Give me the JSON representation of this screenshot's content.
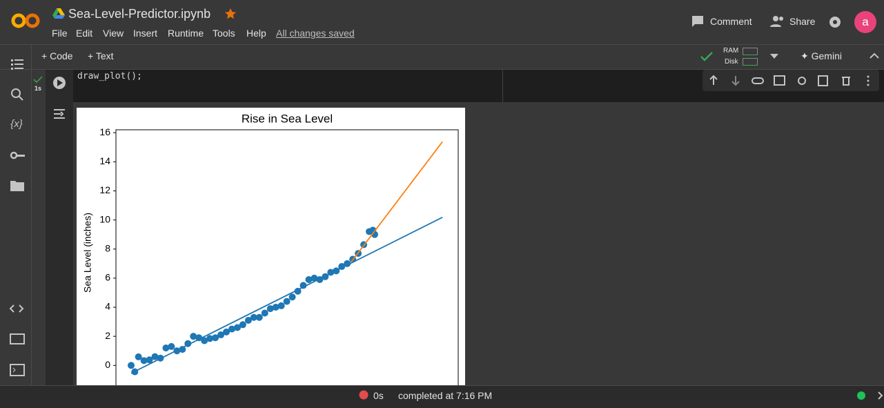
{
  "header": {
    "file_name": "Sea-Level-Predictor.ipynb",
    "menus": [
      "File",
      "Edit",
      "View",
      "Insert",
      "Runtime",
      "Tools",
      "Help"
    ],
    "save_status": "All changes saved",
    "comment": "Comment",
    "share": "Share",
    "avatar": "a"
  },
  "toolbar": {
    "add_code": "Code",
    "add_text": "Text",
    "ram": "RAM",
    "disk": "Disk",
    "gemini": "Gemini"
  },
  "cell": {
    "exec_time": "1s",
    "code": "draw_plot();"
  },
  "status": {
    "duration": "0s",
    "message": "completed at 7:16 PM"
  },
  "chart_data": {
    "type": "scatter",
    "title": "Rise in Sea Level",
    "y_label": "Sea Level (inches)",
    "xlim": [
      1871.7,
      2058.6
    ],
    "ylim": [
      -1.6,
      16.2
    ],
    "yticks": [
      0,
      2,
      4,
      6,
      8,
      10,
      12,
      14,
      16
    ],
    "series": [
      {
        "kind": "scatter",
        "color": "#1f77b4",
        "x": [
          1880,
          1882,
          1884,
          1887,
          1890,
          1893,
          1896,
          1899,
          1902,
          1905,
          1908,
          1911,
          1914,
          1917,
          1920,
          1923,
          1926,
          1929,
          1932,
          1935,
          1938,
          1941,
          1944,
          1947,
          1950,
          1953,
          1956,
          1959,
          1962,
          1965,
          1968,
          1971,
          1974,
          1977,
          1980,
          1983,
          1986,
          1989,
          1992,
          1995,
          1998,
          2001,
          2004,
          2007,
          2010,
          2012,
          2013
        ],
        "values": [
          0.0,
          -0.44,
          0.59,
          0.33,
          0.38,
          0.6,
          0.5,
          1.2,
          1.3,
          1.0,
          1.1,
          1.5,
          2.0,
          1.9,
          1.7,
          1.85,
          1.9,
          2.1,
          2.3,
          2.5,
          2.6,
          2.8,
          3.1,
          3.3,
          3.3,
          3.6,
          3.9,
          4.0,
          4.1,
          4.4,
          4.7,
          5.1,
          5.5,
          5.9,
          6.0,
          5.9,
          6.1,
          6.4,
          6.5,
          6.8,
          7.0,
          7.3,
          7.7,
          8.3,
          9.2,
          9.3,
          9.0
        ]
      },
      {
        "kind": "line",
        "color": "#1f77b4",
        "x": [
          1880,
          2050
        ],
        "values": [
          -0.54,
          10.18
        ]
      },
      {
        "kind": "line",
        "color": "#ff7f0e",
        "x": [
          2000,
          2050
        ],
        "values": [
          7.08,
          15.38
        ]
      }
    ]
  }
}
